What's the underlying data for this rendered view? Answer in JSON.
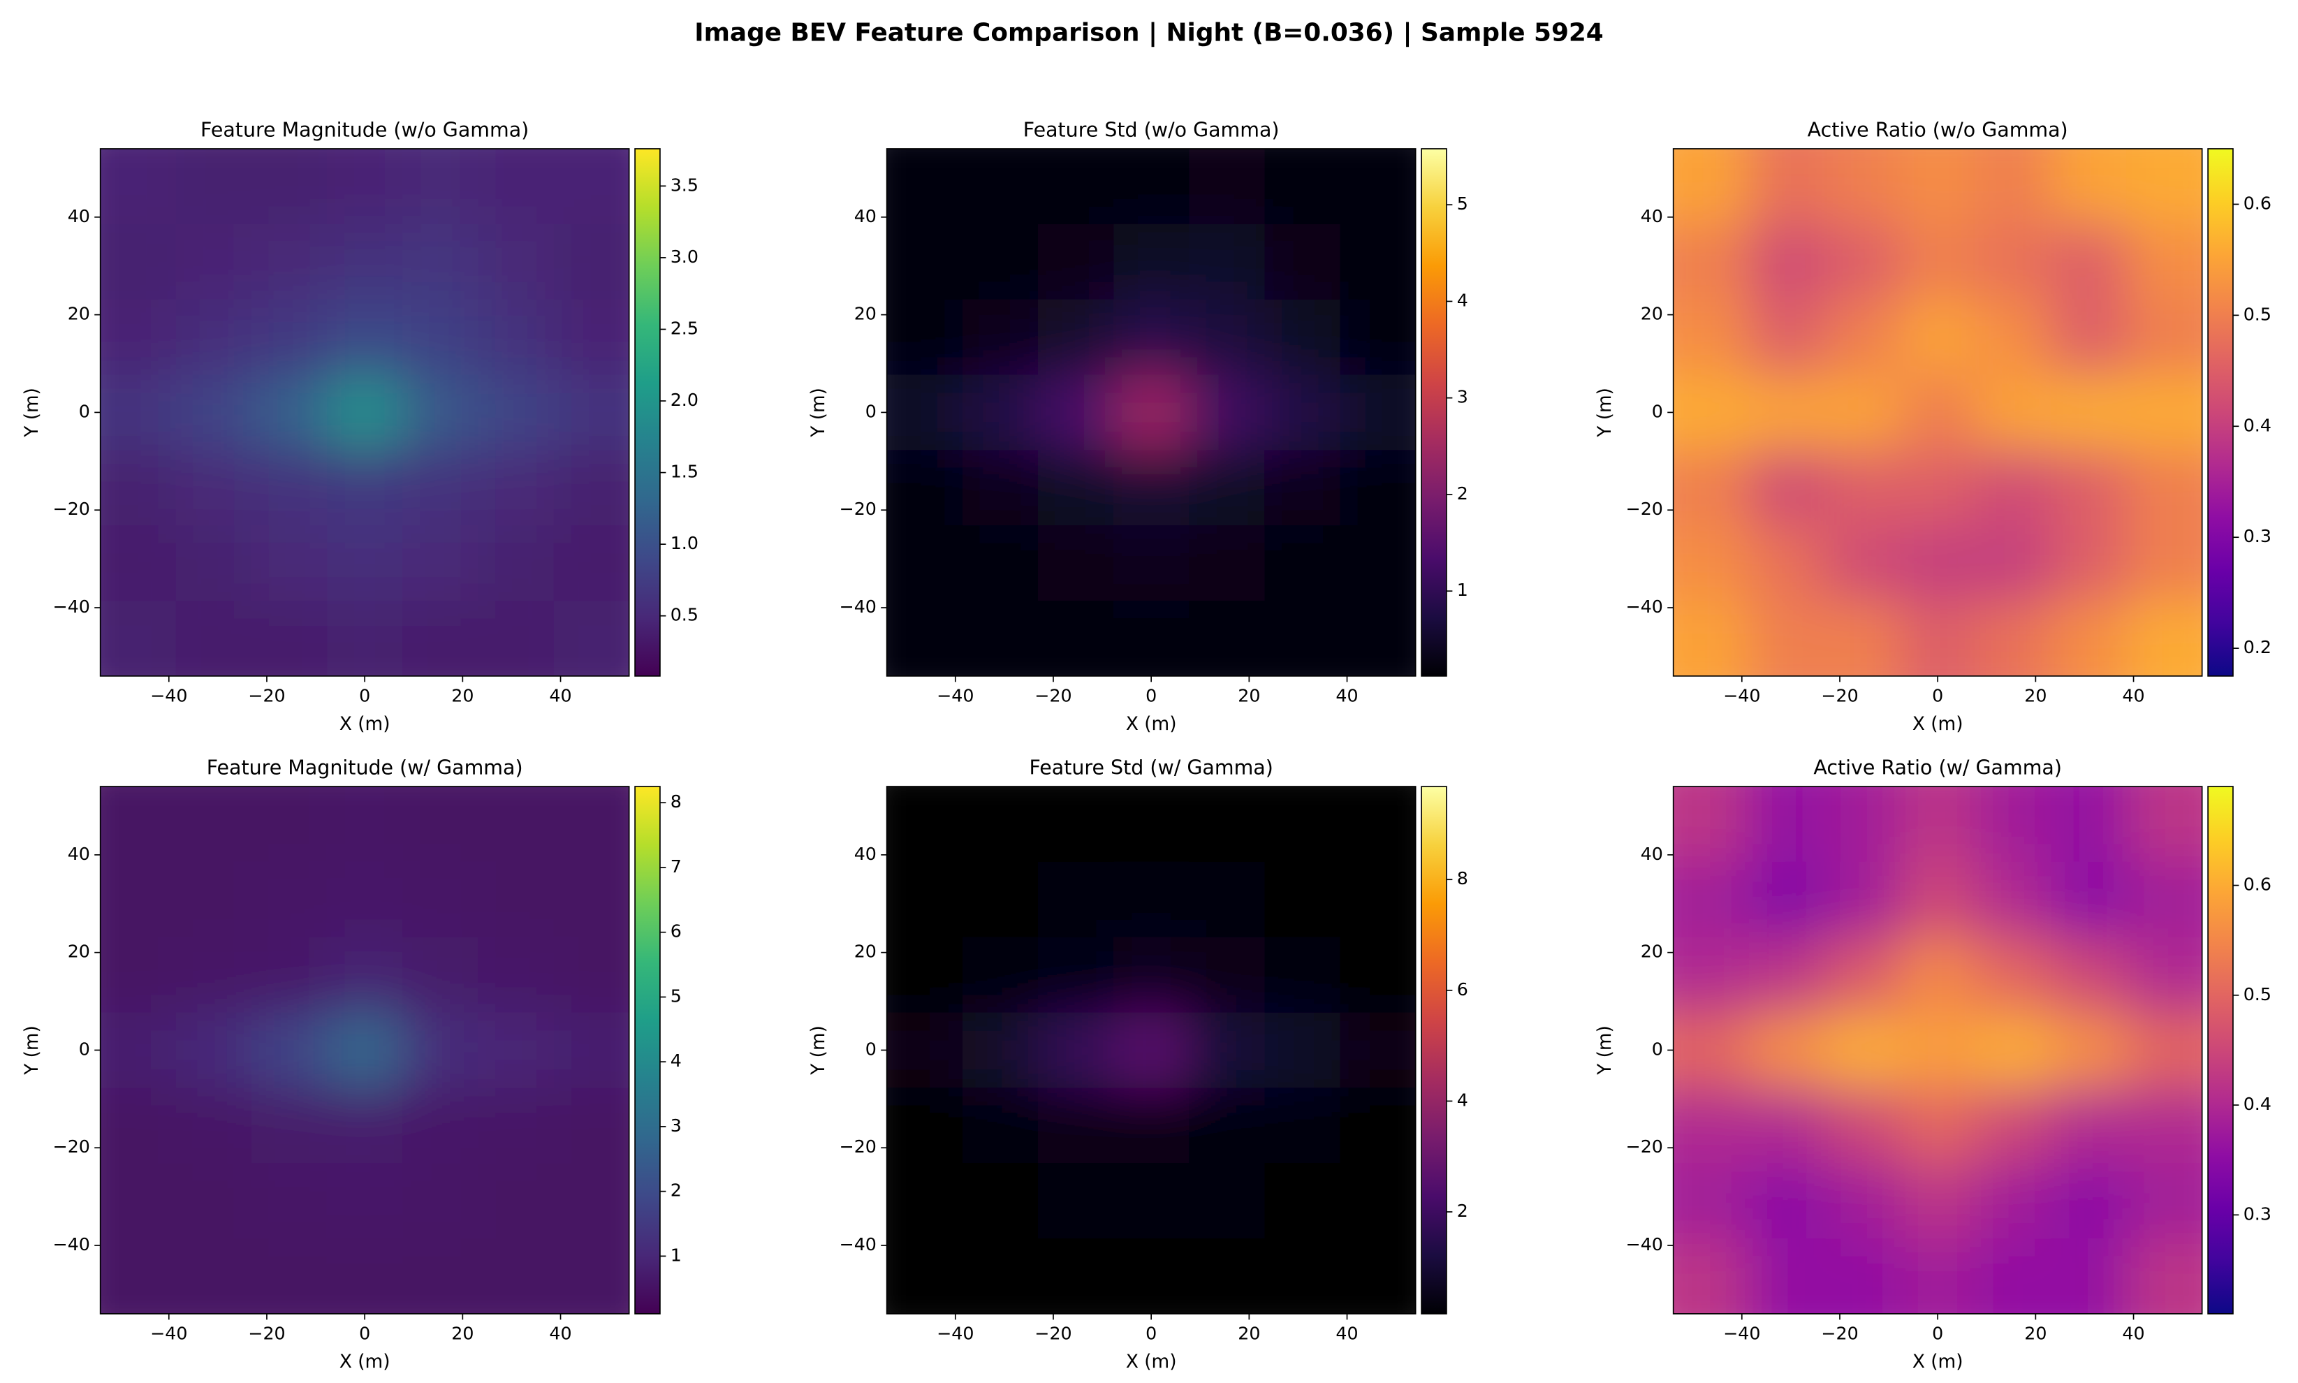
{
  "title": "Image BEV Feature Comparison | Night (B=0.036) | Sample 5924",
  "chart_data": [
    {
      "type": "heatmap",
      "title": "Feature Magnitude (w/o Gamma)",
      "x_label": "X (m)",
      "y_label": "Y (m)",
      "colormap": "viridis",
      "xlim": [
        -54,
        54
      ],
      "ylim": [
        -54,
        54
      ],
      "xticks": [
        {
          "value": -40,
          "label": "−40"
        },
        {
          "value": -20,
          "label": "−20"
        },
        0,
        20,
        40
      ],
      "yticks": [
        {
          "value": -40,
          "label": "−40"
        },
        {
          "value": -20,
          "label": "−20"
        },
        0,
        20,
        40
      ],
      "clim": [
        0.08,
        3.76
      ],
      "cticks": [
        0.5,
        {
          "value": 1,
          "label": "1.0"
        },
        1.5,
        {
          "value": 2,
          "label": "2.0"
        },
        2.5,
        {
          "value": 3,
          "label": "3.0"
        },
        3.5
      ],
      "values": [
        [
          0.45,
          0.4,
          0.4,
          0.45,
          0.5,
          0.45,
          0.45
        ],
        [
          0.4,
          0.45,
          0.5,
          0.6,
          0.65,
          0.5,
          0.4
        ],
        [
          0.45,
          0.55,
          0.7,
          0.9,
          0.8,
          0.6,
          0.45
        ],
        [
          0.65,
          0.85,
          1.2,
          1.9,
          1.1,
          0.85,
          0.65
        ],
        [
          0.4,
          0.5,
          0.6,
          0.7,
          0.6,
          0.5,
          0.4
        ],
        [
          0.35,
          0.4,
          0.5,
          0.55,
          0.5,
          0.4,
          0.35
        ],
        [
          0.4,
          0.35,
          0.35,
          0.4,
          0.35,
          0.35,
          0.4
        ]
      ]
    },
    {
      "type": "heatmap",
      "title": "Feature Std (w/o Gamma)",
      "x_label": "X (m)",
      "y_label": "Y (m)",
      "colormap": "inferno",
      "xlim": [
        -54,
        54
      ],
      "ylim": [
        -54,
        54
      ],
      "xticks": [
        {
          "value": -40,
          "label": "−40"
        },
        {
          "value": -20,
          "label": "−20"
        },
        0,
        20,
        40
      ],
      "yticks": [
        {
          "value": -40,
          "label": "−40"
        },
        {
          "value": -20,
          "label": "−20"
        },
        0,
        20,
        40
      ],
      "clim": [
        0.12,
        5.58
      ],
      "cticks": [
        1,
        2,
        3,
        4,
        5
      ],
      "values": [
        [
          0.25,
          0.2,
          0.2,
          0.25,
          0.3,
          0.2,
          0.2
        ],
        [
          0.2,
          0.25,
          0.3,
          0.45,
          0.5,
          0.3,
          0.2
        ],
        [
          0.25,
          0.35,
          0.55,
          0.9,
          0.7,
          0.45,
          0.25
        ],
        [
          0.5,
          0.8,
          1.3,
          2.4,
          1.2,
          0.8,
          0.5
        ],
        [
          0.25,
          0.35,
          0.45,
          0.6,
          0.45,
          0.35,
          0.25
        ],
        [
          0.2,
          0.25,
          0.3,
          0.35,
          0.3,
          0.25,
          0.2
        ],
        [
          0.25,
          0.2,
          0.2,
          0.25,
          0.2,
          0.2,
          0.25
        ]
      ]
    },
    {
      "type": "heatmap",
      "title": "Active Ratio (w/o Gamma)",
      "x_label": "X (m)",
      "y_label": "Y (m)",
      "colormap": "plasma",
      "xlim": [
        -54,
        54
      ],
      "ylim": [
        -54,
        54
      ],
      "xticks": [
        {
          "value": -40,
          "label": "−40"
        },
        {
          "value": -20,
          "label": "−20"
        },
        0,
        20,
        40
      ],
      "yticks": [
        {
          "value": -40,
          "label": "−40"
        },
        {
          "value": -20,
          "label": "−20"
        },
        0,
        20,
        40
      ],
      "clim": [
        0.175,
        0.65
      ],
      "cticks": [
        0.2,
        0.3,
        0.4,
        0.5,
        0.6
      ],
      "values": [
        [
          0.55,
          0.48,
          0.5,
          0.52,
          0.5,
          0.55,
          0.56
        ],
        [
          0.5,
          0.42,
          0.45,
          0.5,
          0.48,
          0.45,
          0.52
        ],
        [
          0.52,
          0.45,
          0.5,
          0.55,
          0.52,
          0.45,
          0.5
        ],
        [
          0.56,
          0.55,
          0.55,
          0.5,
          0.55,
          0.56,
          0.56
        ],
        [
          0.5,
          0.42,
          0.45,
          0.45,
          0.42,
          0.45,
          0.5
        ],
        [
          0.52,
          0.48,
          0.42,
          0.4,
          0.4,
          0.45,
          0.5
        ],
        [
          0.55,
          0.5,
          0.5,
          0.45,
          0.48,
          0.52,
          0.56
        ]
      ]
    },
    {
      "type": "heatmap",
      "title": "Feature Magnitude (w/ Gamma)",
      "x_label": "X (m)",
      "y_label": "Y (m)",
      "colormap": "viridis",
      "xlim": [
        -54,
        54
      ],
      "ylim": [
        -54,
        54
      ],
      "xticks": [
        {
          "value": -40,
          "label": "−40"
        },
        {
          "value": -20,
          "label": "−20"
        },
        0,
        20,
        40
      ],
      "yticks": [
        {
          "value": -40,
          "label": "−40"
        },
        {
          "value": -20,
          "label": "−20"
        },
        0,
        20,
        40
      ],
      "clim": [
        0.11,
        8.25
      ],
      "cticks": [
        1,
        2,
        3,
        4,
        5,
        6,
        7,
        8
      ],
      "values": [
        [
          0.5,
          0.5,
          0.5,
          0.55,
          0.5,
          0.5,
          0.5
        ],
        [
          0.5,
          0.5,
          0.55,
          0.6,
          0.55,
          0.5,
          0.5
        ],
        [
          0.5,
          0.55,
          0.65,
          0.9,
          0.7,
          0.6,
          0.5
        ],
        [
          0.8,
          1.1,
          1.8,
          2.8,
          1.2,
          1.0,
          0.8
        ],
        [
          0.5,
          0.55,
          0.7,
          0.75,
          0.6,
          0.55,
          0.5
        ],
        [
          0.5,
          0.5,
          0.55,
          0.6,
          0.55,
          0.5,
          0.5
        ],
        [
          0.5,
          0.5,
          0.5,
          0.5,
          0.5,
          0.5,
          0.5
        ]
      ]
    },
    {
      "type": "heatmap",
      "title": "Feature Std (w/ Gamma)",
      "x_label": "X (m)",
      "y_label": "Y (m)",
      "colormap": "inferno",
      "xlim": [
        -54,
        54
      ],
      "ylim": [
        -54,
        54
      ],
      "xticks": [
        {
          "value": -40,
          "label": "−40"
        },
        {
          "value": -20,
          "label": "−20"
        },
        0,
        20,
        40
      ],
      "yticks": [
        {
          "value": -40,
          "label": "−40"
        },
        {
          "value": -20,
          "label": "−20"
        },
        0,
        20,
        40
      ],
      "clim": [
        0.16,
        9.68
      ],
      "cticks": [
        2,
        4,
        6,
        8
      ],
      "values": [
        [
          0.2,
          0.2,
          0.2,
          0.2,
          0.2,
          0.2,
          0.2
        ],
        [
          0.2,
          0.2,
          0.25,
          0.3,
          0.25,
          0.2,
          0.2
        ],
        [
          0.2,
          0.25,
          0.4,
          0.7,
          0.5,
          0.3,
          0.2
        ],
        [
          0.5,
          0.9,
          1.8,
          2.6,
          1.1,
          0.8,
          0.5
        ],
        [
          0.2,
          0.25,
          0.45,
          0.5,
          0.35,
          0.25,
          0.2
        ],
        [
          0.2,
          0.2,
          0.25,
          0.3,
          0.25,
          0.2,
          0.2
        ],
        [
          0.2,
          0.2,
          0.2,
          0.2,
          0.2,
          0.2,
          0.2
        ]
      ]
    },
    {
      "type": "heatmap",
      "title": "Active Ratio (w/ Gamma)",
      "x_label": "X (m)",
      "y_label": "Y (m)",
      "colormap": "plasma",
      "xlim": [
        -54,
        54
      ],
      "ylim": [
        -54,
        54
      ],
      "xticks": [
        {
          "value": -40,
          "label": "−40"
        },
        {
          "value": -20,
          "label": "−20"
        },
        0,
        20,
        40
      ],
      "yticks": [
        {
          "value": -40,
          "label": "−40"
        },
        {
          "value": -20,
          "label": "−20"
        },
        0,
        20,
        40
      ],
      "clim": [
        0.21,
        0.69
      ],
      "cticks": [
        0.3,
        0.4,
        0.5,
        0.6
      ],
      "values": [
        [
          0.42,
          0.36,
          0.38,
          0.42,
          0.38,
          0.36,
          0.42
        ],
        [
          0.38,
          0.34,
          0.38,
          0.45,
          0.4,
          0.35,
          0.38
        ],
        [
          0.4,
          0.42,
          0.48,
          0.55,
          0.5,
          0.45,
          0.4
        ],
        [
          0.5,
          0.56,
          0.6,
          0.58,
          0.6,
          0.56,
          0.5
        ],
        [
          0.4,
          0.4,
          0.45,
          0.5,
          0.45,
          0.4,
          0.4
        ],
        [
          0.38,
          0.35,
          0.38,
          0.42,
          0.38,
          0.35,
          0.38
        ],
        [
          0.42,
          0.36,
          0.36,
          0.38,
          0.36,
          0.36,
          0.42
        ]
      ]
    }
  ]
}
